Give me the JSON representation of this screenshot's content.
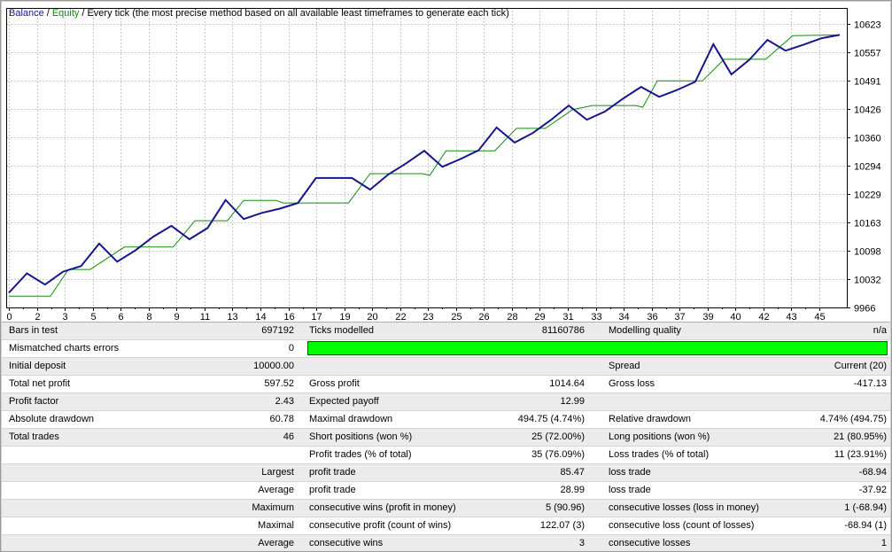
{
  "chart": {
    "legend": {
      "balance_label": "Balance",
      "equity_label": "Equity",
      "separator": "/",
      "method": "Every tick (the most precise method based on all available least timeframes to generate each tick)"
    }
  },
  "chart_data": {
    "type": "line",
    "title": "Balance / Equity",
    "subtitle": "Every tick (the most precise method based on all available least timeframes to generate each tick)",
    "grid": true,
    "legend_position": "top-left",
    "x_axis": {
      "range": [
        0,
        46
      ],
      "tick_labels": [
        "0",
        "2",
        "3",
        "5",
        "6",
        "8",
        "9",
        "11",
        "13",
        "14",
        "16",
        "17",
        "19",
        "20",
        "22",
        "23",
        "25",
        "26",
        "28",
        "29",
        "31",
        "33",
        "34",
        "36",
        "37",
        "39",
        "40",
        "42",
        "43",
        "45"
      ]
    },
    "y_axis": {
      "range": [
        9966,
        10623
      ],
      "tick_values": [
        10623,
        10557,
        10491,
        10426,
        10360,
        10294,
        10229,
        10163,
        10098,
        10032,
        9966
      ]
    },
    "series": [
      {
        "name": "Equity",
        "color": "#0f8c0f",
        "width": 1,
        "points": [
          [
            0,
            9992
          ],
          [
            2.3,
            9992
          ],
          [
            3.3,
            10054
          ],
          [
            4.5,
            10054
          ],
          [
            6.4,
            10106
          ],
          [
            9.1,
            10106
          ],
          [
            10.3,
            10167
          ],
          [
            12.1,
            10167
          ],
          [
            13.0,
            10214
          ],
          [
            14.8,
            10214
          ],
          [
            15.2,
            10208
          ],
          [
            18.8,
            10208
          ],
          [
            20.0,
            10276
          ],
          [
            22.9,
            10276
          ],
          [
            23.3,
            10272
          ],
          [
            24.2,
            10329
          ],
          [
            26.9,
            10329
          ],
          [
            28.1,
            10381
          ],
          [
            29.7,
            10381
          ],
          [
            31.2,
            10424
          ],
          [
            32.3,
            10434
          ],
          [
            34.7,
            10434
          ],
          [
            35.1,
            10430
          ],
          [
            35.9,
            10491
          ],
          [
            38.4,
            10491
          ],
          [
            39.6,
            10541
          ],
          [
            41.9,
            10541
          ],
          [
            43.4,
            10596
          ],
          [
            46,
            10597.5
          ]
        ]
      },
      {
        "name": "Balance",
        "color": "#16168c",
        "width": 2,
        "points": [
          [
            0,
            10000
          ],
          [
            1,
            10045
          ],
          [
            2,
            10019
          ],
          [
            3,
            10049
          ],
          [
            4,
            10062
          ],
          [
            5,
            10114
          ],
          [
            6,
            10072
          ],
          [
            7,
            10098
          ],
          [
            8,
            10130
          ],
          [
            9,
            10155
          ],
          [
            10,
            10124
          ],
          [
            11,
            10150
          ],
          [
            12,
            10215
          ],
          [
            13,
            10171
          ],
          [
            14,
            10185
          ],
          [
            15,
            10195
          ],
          [
            16,
            10208
          ],
          [
            17,
            10266
          ],
          [
            18,
            10266
          ],
          [
            19,
            10266
          ],
          [
            20,
            10239
          ],
          [
            21,
            10274
          ],
          [
            22,
            10300
          ],
          [
            23,
            10329
          ],
          [
            24,
            10292
          ],
          [
            25,
            10310
          ],
          [
            26,
            10330
          ],
          [
            27,
            10383
          ],
          [
            28,
            10348
          ],
          [
            29,
            10370
          ],
          [
            30,
            10400
          ],
          [
            31,
            10434
          ],
          [
            32,
            10401
          ],
          [
            33,
            10420
          ],
          [
            34,
            10450
          ],
          [
            35,
            10477
          ],
          [
            36,
            10454
          ],
          [
            37,
            10470
          ],
          [
            38,
            10489
          ],
          [
            39,
            10576
          ],
          [
            40,
            10506
          ],
          [
            41,
            10540
          ],
          [
            42,
            10586
          ],
          [
            43,
            10561
          ],
          [
            44,
            10575
          ],
          [
            45,
            10590
          ],
          [
            46,
            10597.52
          ]
        ]
      }
    ]
  },
  "table": {
    "quality_bar_color": "#00ff00",
    "rows": [
      {
        "cells": [
          "Bars in test",
          "697192",
          "Ticks modelled",
          "81160786",
          "Modelling quality",
          "n/a"
        ]
      },
      {
        "cells": [
          "Mismatched charts errors",
          "0",
          "",
          "",
          "",
          ""
        ],
        "quality_bar": true
      },
      {
        "cells": [
          "Initial deposit",
          "10000.00",
          "",
          "",
          "Spread",
          "Current (20)"
        ]
      },
      {
        "cells": [
          "Total net profit",
          "597.52",
          "Gross profit",
          "1014.64",
          "Gross loss",
          "-417.13"
        ]
      },
      {
        "cells": [
          "Profit factor",
          "2.43",
          "Expected payoff",
          "12.99",
          "",
          ""
        ]
      },
      {
        "cells": [
          "Absolute drawdown",
          "60.78",
          "Maximal drawdown",
          "494.75 (4.74%)",
          "Relative drawdown",
          "4.74% (494.75)"
        ]
      },
      {
        "cells": [
          "Total trades",
          "46",
          "Short positions (won %)",
          "25 (72.00%)",
          "Long positions (won %)",
          "21 (80.95%)"
        ]
      },
      {
        "cells": [
          "",
          "",
          "Profit trades (% of total)",
          "35 (76.09%)",
          "Loss trades (% of total)",
          "11 (23.91%)"
        ]
      },
      {
        "cells": [
          "",
          "Largest",
          "profit trade",
          "85.47",
          "loss trade",
          "-68.94"
        ]
      },
      {
        "cells": [
          "",
          "Average",
          "profit trade",
          "28.99",
          "loss trade",
          "-37.92"
        ]
      },
      {
        "cells": [
          "",
          "Maximum",
          "consecutive wins (profit in money)",
          "5 (90.96)",
          "consecutive losses (loss in money)",
          "1 (-68.94)"
        ]
      },
      {
        "cells": [
          "",
          "Maximal",
          "consecutive profit (count of wins)",
          "122.07 (3)",
          "consecutive loss (count of losses)",
          "-68.94 (1)"
        ]
      },
      {
        "cells": [
          "",
          "Average",
          "consecutive wins",
          "3",
          "consecutive losses",
          "1"
        ]
      }
    ]
  }
}
